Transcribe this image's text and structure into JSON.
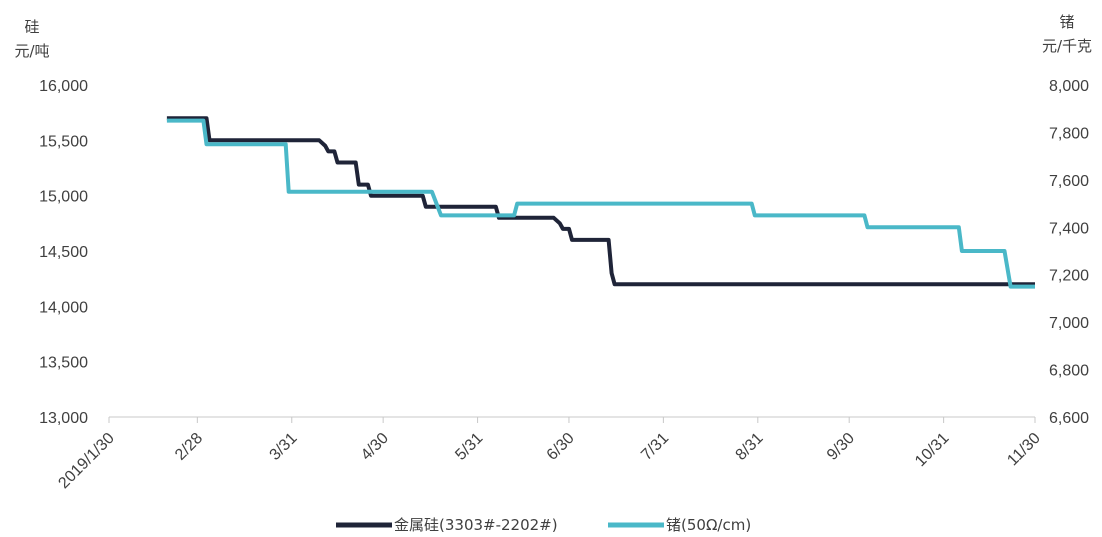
{
  "chart_data": {
    "type": "line",
    "title": "",
    "y_left": {
      "title": "硅",
      "unit": "元/吨",
      "ticks": [
        "16,000",
        "15,500",
        "15,000",
        "14,500",
        "14,000",
        "13,500",
        "13,000"
      ],
      "ylim": [
        13000,
        16000
      ]
    },
    "y_right": {
      "title": "锗",
      "unit": "元/千克",
      "ticks": [
        "8,000",
        "7,800",
        "7,600",
        "7,400",
        "7,200",
        "7,000",
        "6,800",
        "6,600"
      ],
      "ylim": [
        6600,
        8000
      ]
    },
    "x_ticks": [
      {
        "label": "2019/1/30",
        "date": "2019-01-30"
      },
      {
        "label": "2/28",
        "date": "2019-02-28"
      },
      {
        "label": "3/31",
        "date": "2019-03-31"
      },
      {
        "label": "4/30",
        "date": "2019-04-30"
      },
      {
        "label": "5/31",
        "date": "2019-05-31"
      },
      {
        "label": "6/30",
        "date": "2019-06-30"
      },
      {
        "label": "7/31",
        "date": "2019-07-31"
      },
      {
        "label": "8/31",
        "date": "2019-08-31"
      },
      {
        "label": "9/30",
        "date": "2019-09-30"
      },
      {
        "label": "10/31",
        "date": "2019-10-31"
      },
      {
        "label": "11/30",
        "date": "2019-11-30"
      }
    ],
    "xlim": [
      "2019-01-30",
      "2019-11-30"
    ],
    "legend_position": "bottom",
    "series": [
      {
        "name": "金属硅(3303#-2202#)",
        "axis": "left",
        "color": "#1f2438",
        "step": true,
        "points": [
          [
            "2019-02-18",
            15700
          ],
          [
            "2019-03-03",
            15700
          ],
          [
            "2019-03-04",
            15500
          ],
          [
            "2019-04-09",
            15500
          ],
          [
            "2019-04-11",
            15450
          ],
          [
            "2019-04-12",
            15400
          ],
          [
            "2019-04-14",
            15400
          ],
          [
            "2019-04-15",
            15300
          ],
          [
            "2019-04-21",
            15300
          ],
          [
            "2019-04-22",
            15100
          ],
          [
            "2019-04-25",
            15100
          ],
          [
            "2019-04-26",
            15000
          ],
          [
            "2019-05-13",
            15000
          ],
          [
            "2019-05-14",
            14900
          ],
          [
            "2019-06-06",
            14900
          ],
          [
            "2019-06-07",
            14800
          ],
          [
            "2019-06-25",
            14800
          ],
          [
            "2019-06-27",
            14750
          ],
          [
            "2019-06-28",
            14700
          ],
          [
            "2019-06-30",
            14700
          ],
          [
            "2019-07-01",
            14600
          ],
          [
            "2019-07-13",
            14600
          ],
          [
            "2019-07-14",
            14300
          ],
          [
            "2019-07-15",
            14200
          ],
          [
            "2019-11-30",
            14200
          ]
        ]
      },
      {
        "name": "锗(50Ω/cm)",
        "axis": "right",
        "color": "#4ab8c8",
        "step": true,
        "points": [
          [
            "2019-02-18",
            7850
          ],
          [
            "2019-03-02",
            7850
          ],
          [
            "2019-03-03",
            7750
          ],
          [
            "2019-03-29",
            7750
          ],
          [
            "2019-03-30",
            7550
          ],
          [
            "2019-05-16",
            7550
          ],
          [
            "2019-05-19",
            7450
          ],
          [
            "2019-06-12",
            7450
          ],
          [
            "2019-06-13",
            7500
          ],
          [
            "2019-08-29",
            7500
          ],
          [
            "2019-08-30",
            7450
          ],
          [
            "2019-10-05",
            7450
          ],
          [
            "2019-10-06",
            7400
          ],
          [
            "2019-11-05",
            7400
          ],
          [
            "2019-11-06",
            7300
          ],
          [
            "2019-11-20",
            7300
          ],
          [
            "2019-11-22",
            7150
          ],
          [
            "2019-11-30",
            7150
          ]
        ]
      }
    ]
  }
}
